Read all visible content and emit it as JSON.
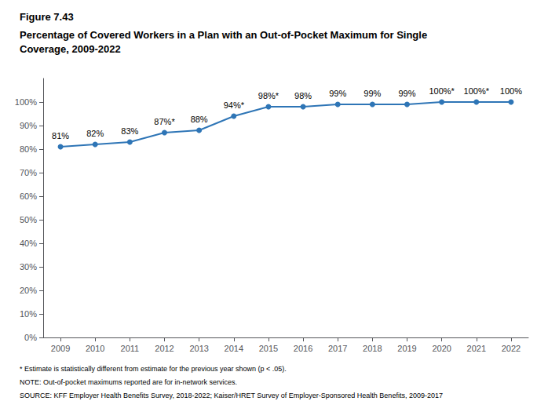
{
  "chart_data": {
    "type": "line",
    "title": "Percentage of Covered Workers in a Plan with an Out-of-Pocket Maximum for Single\nCoverage, 2009-2022",
    "annotations": [
      "Figure 7.43",
      "* Estimate is statistically different from estimate for the previous year shown (p < .05).",
      "NOTE: Out-of-pocket maximums reported are for in-network services.",
      "SOURCE: KFF Employer Health Benefits Survey, 2018-2022; Kaiser/HRET Survey of Employer-Sponsored Health Benefits, 2009-2017"
    ],
    "x": [
      2009,
      2010,
      2011,
      2012,
      2013,
      2014,
      2015,
      2016,
      2017,
      2018,
      2019,
      2020,
      2021,
      2022
    ],
    "values": [
      81,
      82,
      83,
      87,
      88,
      94,
      98,
      98,
      99,
      99,
      99,
      100,
      100,
      100
    ],
    "value_labels": [
      "81%",
      "82%",
      "83%",
      "87%*",
      "88%",
      "94%*",
      "98%*",
      "98%",
      "99%",
      "99%",
      "99%",
      "100%*",
      "100%*",
      "100%"
    ],
    "data_labels": true,
    "color": "#2E75B6",
    "marker": "circle",
    "xlim": [
      2008.5,
      2022.5
    ],
    "xticks": [
      2009,
      2010,
      2011,
      2012,
      2013,
      2014,
      2015,
      2016,
      2017,
      2018,
      2019,
      2020,
      2021,
      2022
    ],
    "ylim": [
      0,
      110
    ],
    "yticks": [
      {
        "value": 0,
        "label": "0%"
      },
      {
        "value": 10,
        "label": "10%"
      },
      {
        "value": 20,
        "label": "20%"
      },
      {
        "value": 30,
        "label": "30%"
      },
      {
        "value": 40,
        "label": "40%"
      },
      {
        "value": 50,
        "label": "50%"
      },
      {
        "value": 60,
        "label": "60%"
      },
      {
        "value": 70,
        "label": "70%"
      },
      {
        "value": 80,
        "label": "80%"
      },
      {
        "value": 90,
        "label": "90%"
      },
      {
        "value": 100,
        "label": "100%"
      }
    ],
    "grid": false
  }
}
